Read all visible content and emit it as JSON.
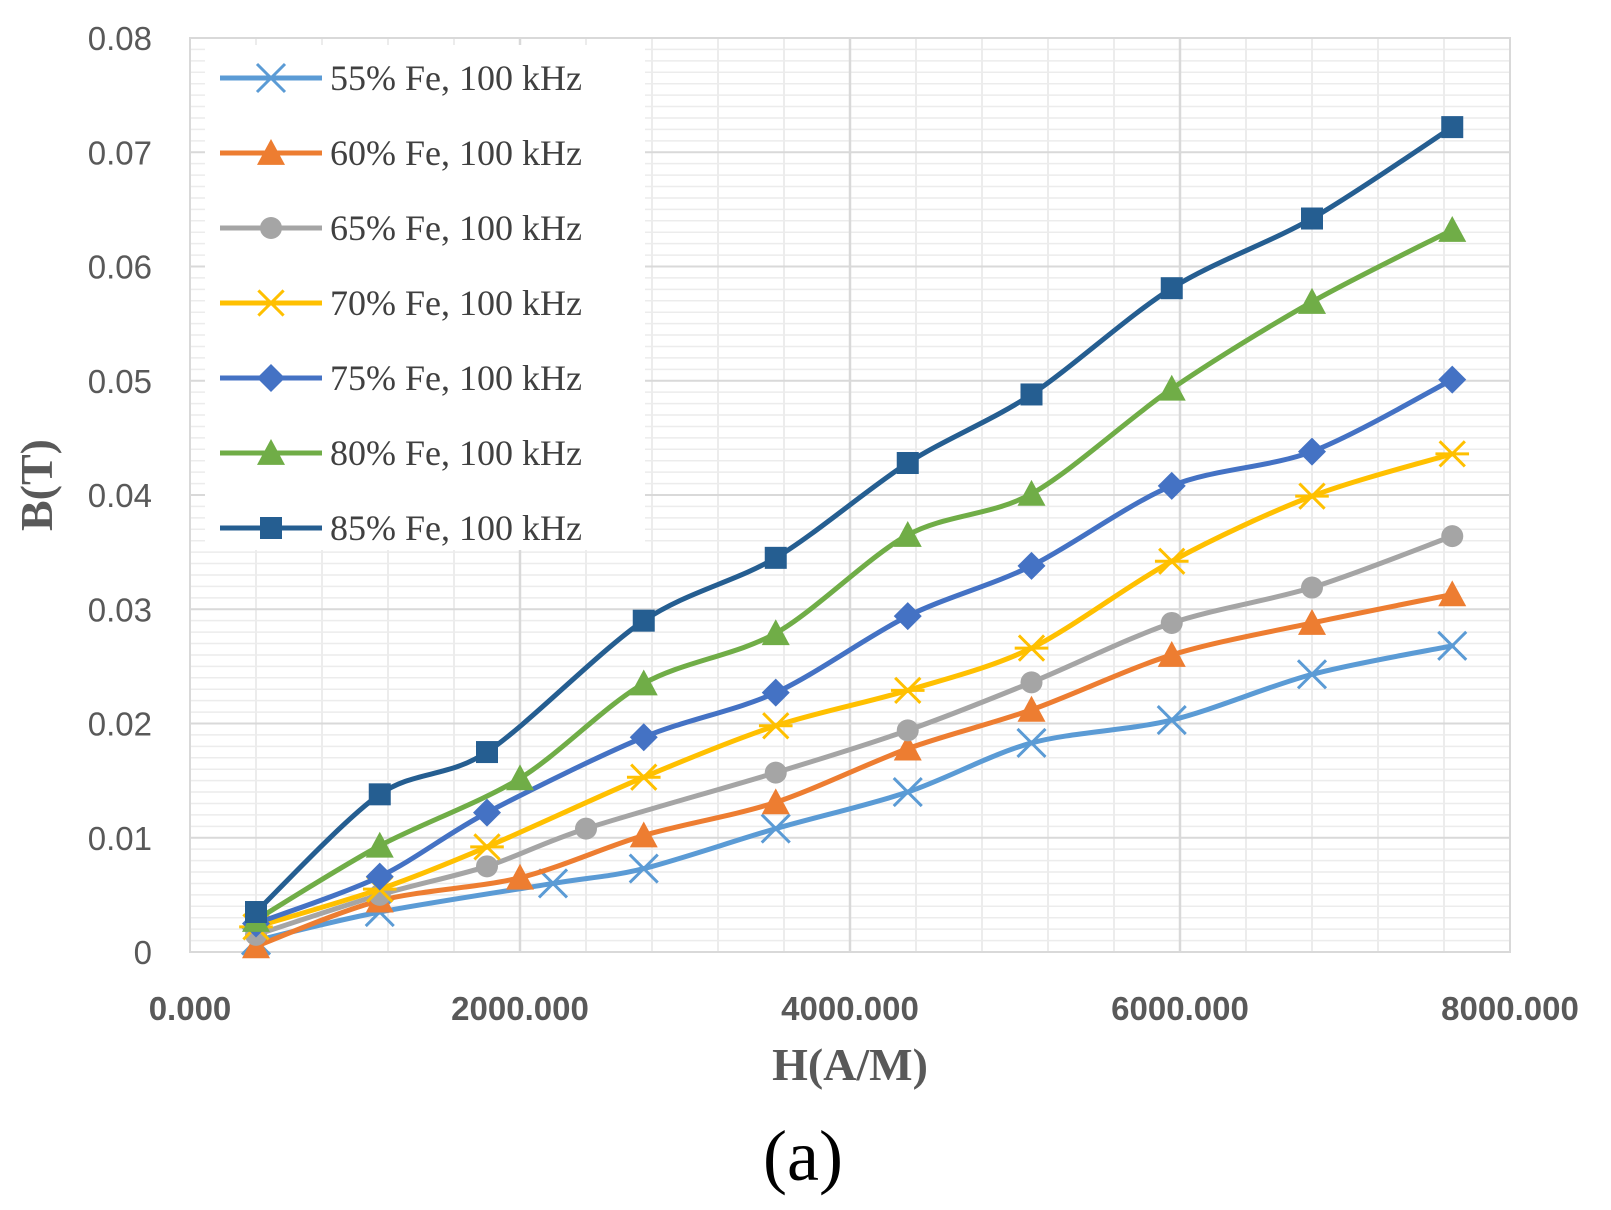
{
  "chart_data": {
    "type": "line",
    "title": "",
    "xlabel": "H(A/M)",
    "ylabel": "B(T)",
    "caption": "(a)",
    "xlim": [
      0,
      8000
    ],
    "ylim": [
      0,
      0.08
    ],
    "x_ticks": [
      "0.000",
      "2000.000",
      "4000.000",
      "6000.000",
      "8000.000"
    ],
    "x_tick_values": [
      0,
      2000,
      4000,
      6000,
      8000
    ],
    "y_ticks": [
      "0",
      "0.01",
      "0.02",
      "0.03",
      "0.04",
      "0.05",
      "0.06",
      "0.07",
      "0.08"
    ],
    "y_tick_values": [
      0,
      0.01,
      0.02,
      0.03,
      0.04,
      0.05,
      0.06,
      0.07,
      0.08
    ],
    "grid": true,
    "legend_position": "top-left",
    "series": [
      {
        "name": "55% Fe, 100 kHz",
        "color": "#5B9BD5",
        "marker": "x",
        "x": [
          400,
          1150,
          2200,
          2750,
          3550,
          4350,
          5100,
          5950,
          6800,
          7650
        ],
        "y": [
          0.001,
          0.0035,
          0.006,
          0.0073,
          0.0108,
          0.014,
          0.0183,
          0.0203,
          0.0243,
          0.0268
        ]
      },
      {
        "name": "60% Fe, 100 kHz",
        "color": "#ED7D31",
        "marker": "triangle",
        "x": [
          400,
          1150,
          2000,
          2750,
          3550,
          4350,
          5100,
          5950,
          6800,
          7650
        ],
        "y": [
          0.0005,
          0.0045,
          0.0065,
          0.0102,
          0.0131,
          0.0178,
          0.0212,
          0.026,
          0.0288,
          0.0313
        ]
      },
      {
        "name": "65% Fe, 100 kHz",
        "color": "#A5A5A5",
        "marker": "circle",
        "x": [
          400,
          1150,
          1800,
          2400,
          3550,
          4350,
          5100,
          5950,
          6800,
          7650
        ],
        "y": [
          0.0015,
          0.005,
          0.0075,
          0.0108,
          0.0157,
          0.0194,
          0.0236,
          0.0288,
          0.0319,
          0.0364
        ]
      },
      {
        "name": "70% Fe, 100 kHz",
        "color": "#FFC000",
        "marker": "star",
        "x": [
          400,
          1150,
          1800,
          2750,
          3550,
          4350,
          5100,
          5950,
          6800,
          7650
        ],
        "y": [
          0.0022,
          0.0055,
          0.0092,
          0.0153,
          0.0198,
          0.0229,
          0.0266,
          0.0342,
          0.0399,
          0.0436
        ]
      },
      {
        "name": "75% Fe, 100 kHz",
        "color": "#4472C4",
        "marker": "diamond",
        "x": [
          400,
          1150,
          1800,
          2750,
          3550,
          4350,
          5100,
          5950,
          6800,
          7650
        ],
        "y": [
          0.0025,
          0.0066,
          0.0122,
          0.0188,
          0.0227,
          0.0294,
          0.0338,
          0.0408,
          0.0438,
          0.0501
        ]
      },
      {
        "name": "80% Fe, 100 kHz",
        "color": "#70AD47",
        "marker": "triangle",
        "x": [
          400,
          1150,
          2000,
          2750,
          3550,
          4350,
          5100,
          5950,
          6800,
          7650
        ],
        "y": [
          0.0028,
          0.0093,
          0.0152,
          0.0235,
          0.0279,
          0.0365,
          0.0401,
          0.0493,
          0.0569,
          0.0632
        ]
      },
      {
        "name": "85% Fe, 100 kHz",
        "color": "#255E91",
        "marker": "square",
        "x": [
          400,
          1150,
          1800,
          2750,
          3550,
          4350,
          5100,
          5950,
          6800,
          7650
        ],
        "y": [
          0.0035,
          0.0138,
          0.0175,
          0.029,
          0.0345,
          0.0428,
          0.0488,
          0.0581,
          0.0642,
          0.0722
        ]
      }
    ]
  }
}
